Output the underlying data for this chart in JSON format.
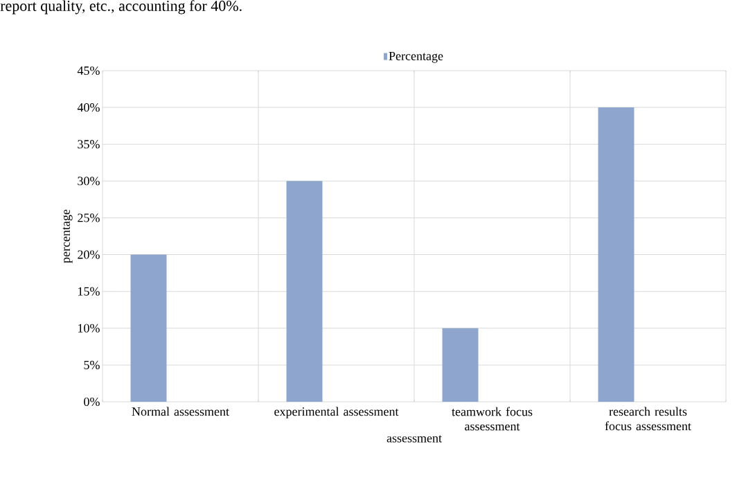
{
  "chart_data": {
    "type": "bar",
    "xlabel": "assessment",
    "ylabel": "percentage",
    "annotations": [
      "report quality, etc., accounting for 40%."
    ],
    "categories": [
      "Normal assessment",
      "experimental assessment",
      "teamwork focus assessment",
      "research results focus assessment"
    ],
    "series": [
      {
        "name": "Percentage",
        "color": "#8ea6ce",
        "values": [
          20,
          30,
          10,
          40
        ]
      }
    ],
    "ylim": [
      0,
      45
    ],
    "yticks": [
      {
        "value": 0,
        "label": "0%"
      },
      {
        "value": 5,
        "label": "5%"
      },
      {
        "value": 10,
        "label": "10%"
      },
      {
        "value": 15,
        "label": "15%"
      },
      {
        "value": 20,
        "label": "20%"
      },
      {
        "value": 25,
        "label": "25%"
      },
      {
        "value": 30,
        "label": "30%"
      },
      {
        "value": 35,
        "label": "35%"
      },
      {
        "value": 40,
        "label": "40%"
      },
      {
        "value": 45,
        "label": "45%"
      }
    ],
    "grid": true,
    "legend": "top"
  }
}
